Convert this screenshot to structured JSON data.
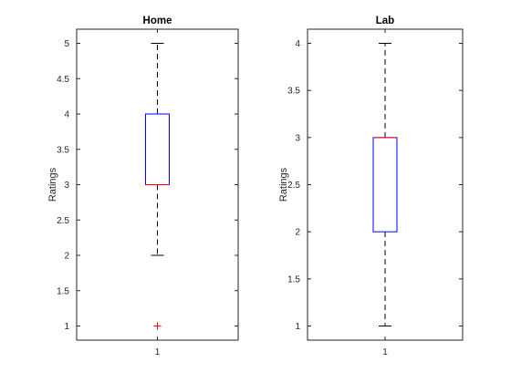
{
  "chart_data": [
    {
      "type": "box",
      "title": "Home",
      "xlabel": "",
      "ylabel": "Ratings",
      "categories": [
        "1"
      ],
      "ylim": [
        0.8,
        5.2
      ],
      "yticks": [
        1,
        1.5,
        2,
        2.5,
        3,
        3.5,
        4,
        4.5,
        5
      ],
      "ytick_labels": [
        "1",
        "1.5",
        "2",
        "2.5",
        "3",
        "3.5",
        "4",
        "4.5",
        "5"
      ],
      "box": {
        "whisker_low": 2,
        "q1": 3,
        "median": 3,
        "q3": 4,
        "whisker_high": 5,
        "outliers": [
          1
        ]
      },
      "box_color": "#0000ff",
      "median_color": "#ff0000",
      "outlier_color": "#ff0000",
      "whisker_color": "#000000",
      "outlier_marker": "+"
    },
    {
      "type": "box",
      "title": "Lab",
      "xlabel": "",
      "ylabel": "Ratings",
      "categories": [
        "1"
      ],
      "ylim": [
        0.85,
        4.15
      ],
      "yticks": [
        1,
        1.5,
        2,
        2.5,
        3,
        3.5,
        4
      ],
      "ytick_labels": [
        "1",
        "1.5",
        "2",
        "2.5",
        "3",
        "3.5",
        "4"
      ],
      "box": {
        "whisker_low": 1,
        "q1": 2,
        "median": 3,
        "q3": 3,
        "whisker_high": 4,
        "outliers": []
      },
      "box_color": "#0000ff",
      "median_color": "#ff0000",
      "outlier_color": "#ff0000",
      "whisker_color": "#000000",
      "outlier_marker": "+"
    }
  ]
}
